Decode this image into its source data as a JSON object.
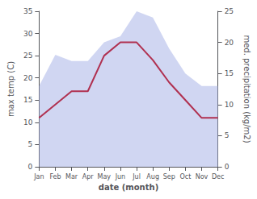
{
  "chart_data": {
    "type": "line",
    "xlabel": "date (month)",
    "ylabel": "max temp (C)",
    "y2label": "med. precipitation (kg/m2)",
    "categories": [
      "Jan",
      "Feb",
      "Mar",
      "Apr",
      "May",
      "Jun",
      "Jul",
      "Aug",
      "Sep",
      "Oct",
      "Nov",
      "Dec"
    ],
    "series": [
      {
        "type": "area",
        "axis": "y2",
        "color": "#aab4e8",
        "values": [
          13,
          18,
          17,
          17,
          20,
          21,
          25,
          24,
          19,
          15,
          13,
          13
        ]
      },
      {
        "type": "line",
        "color": "#b03050",
        "values": [
          11,
          14,
          17,
          17,
          25,
          28,
          28,
          24,
          19,
          15,
          11,
          11
        ]
      }
    ],
    "ylim": [
      0,
      35
    ],
    "yticks": [
      0,
      5,
      10,
      15,
      20,
      25,
      30,
      35
    ],
    "y2lim": [
      0,
      25
    ],
    "y2ticks": [
      0,
      5,
      10,
      15,
      20,
      25
    ],
    "grid": false
  }
}
